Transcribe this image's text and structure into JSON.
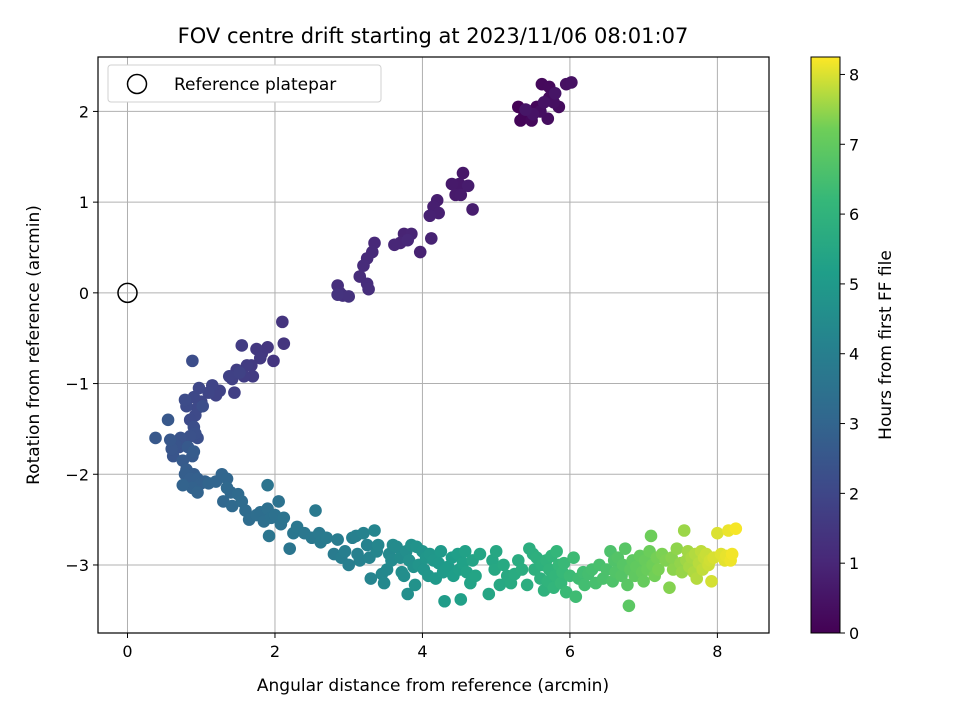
{
  "chart_data": {
    "type": "scatter",
    "title": "FOV centre drift starting at 2023/11/06 08:01:07",
    "xlabel": "Angular distance from reference (arcmin)",
    "ylabel": "Rotation from reference (arcmin)",
    "colorbar_label": "Hours from first FF file",
    "xlim": [
      -0.4,
      8.7
    ],
    "ylim": [
      -3.75,
      2.6
    ],
    "xticks": [
      0,
      2,
      4,
      6,
      8
    ],
    "yticks": [
      -3,
      -2,
      -1,
      0,
      1,
      2
    ],
    "colorbar_range": [
      0,
      8.25
    ],
    "colorbar_ticks": [
      0,
      1,
      2,
      3,
      4,
      5,
      6,
      7,
      8
    ],
    "colormap": "viridis",
    "grid": true,
    "legend": {
      "position": "top-left",
      "entries": [
        "Reference platepar"
      ]
    },
    "reference_point": {
      "x": 0,
      "y": 0
    },
    "series": [
      {
        "points": [
          [
            5.3,
            2.05
          ],
          [
            5.38,
            1.95
          ],
          [
            5.33,
            1.9
          ],
          [
            5.45,
            2.0
          ],
          [
            5.55,
            2.05
          ],
          [
            5.48,
            1.9
          ],
          [
            5.62,
            2.3
          ],
          [
            5.72,
            2.27
          ],
          [
            5.72,
            2.15
          ],
          [
            5.85,
            2.05
          ],
          [
            5.7,
            1.92
          ],
          [
            5.6,
            2.0
          ],
          [
            5.78,
            2.1
          ],
          [
            5.95,
            2.3
          ],
          [
            6.02,
            2.32
          ],
          [
            5.65,
            2.1
          ],
          [
            5.5,
            1.97
          ],
          [
            5.8,
            2.2
          ],
          [
            5.4,
            2.02
          ],
          [
            4.55,
            1.32
          ],
          [
            4.5,
            1.2
          ],
          [
            4.4,
            1.2
          ],
          [
            4.45,
            1.08
          ],
          [
            4.52,
            1.08
          ],
          [
            4.62,
            1.18
          ],
          [
            4.68,
            0.92
          ],
          [
            4.2,
            1.02
          ],
          [
            4.15,
            0.95
          ],
          [
            4.22,
            0.88
          ],
          [
            4.1,
            0.85
          ],
          [
            3.97,
            0.45
          ],
          [
            4.12,
            0.6
          ],
          [
            3.75,
            0.65
          ],
          [
            3.85,
            0.65
          ],
          [
            3.7,
            0.55
          ],
          [
            3.62,
            0.53
          ],
          [
            3.8,
            0.58
          ],
          [
            3.35,
            0.55
          ],
          [
            3.32,
            0.45
          ],
          [
            3.25,
            0.38
          ],
          [
            3.2,
            0.3
          ],
          [
            3.15,
            0.18
          ],
          [
            3.25,
            0.1
          ],
          [
            3.27,
            0.04
          ],
          [
            2.85,
            0.08
          ],
          [
            2.88,
            0.0
          ],
          [
            2.92,
            -0.03
          ],
          [
            3.0,
            -0.04
          ],
          [
            2.85,
            -0.02
          ],
          [
            2.1,
            -0.32
          ],
          [
            2.12,
            -0.56
          ],
          [
            1.98,
            -0.75
          ],
          [
            1.9,
            -0.6
          ],
          [
            1.82,
            -0.67
          ],
          [
            1.75,
            -0.62
          ],
          [
            1.8,
            -0.72
          ],
          [
            1.68,
            -0.8
          ],
          [
            1.7,
            -0.92
          ],
          [
            1.62,
            -0.8
          ],
          [
            1.55,
            -0.58
          ],
          [
            1.58,
            -0.92
          ],
          [
            1.48,
            -0.85
          ],
          [
            1.45,
            -1.1
          ],
          [
            1.42,
            -0.95
          ],
          [
            1.38,
            -0.92
          ],
          [
            1.52,
            -0.88
          ],
          [
            1.25,
            -1.08
          ],
          [
            1.2,
            -1.13
          ],
          [
            1.15,
            -1.02
          ],
          [
            1.1,
            -1.1
          ],
          [
            1.0,
            -1.2
          ],
          [
            0.97,
            -1.05
          ],
          [
            0.9,
            -1.15
          ],
          [
            0.95,
            -1.27
          ],
          [
            0.92,
            -1.35
          ],
          [
            0.85,
            -1.4
          ],
          [
            0.8,
            -1.25
          ],
          [
            0.78,
            -1.18
          ],
          [
            0.88,
            -0.75
          ],
          [
            1.02,
            -1.25
          ],
          [
            0.9,
            -1.48
          ],
          [
            0.95,
            -1.6
          ],
          [
            0.92,
            -1.55
          ],
          [
            0.85,
            -1.58
          ],
          [
            0.78,
            -1.65
          ],
          [
            0.72,
            -1.6
          ],
          [
            0.7,
            -1.7
          ],
          [
            0.65,
            -1.68
          ],
          [
            0.62,
            -1.8
          ],
          [
            0.6,
            -1.72
          ],
          [
            0.58,
            -1.62
          ],
          [
            0.55,
            -1.4
          ],
          [
            0.38,
            -1.6
          ],
          [
            0.82,
            -1.7
          ],
          [
            0.88,
            -1.8
          ],
          [
            0.75,
            -1.85
          ],
          [
            0.9,
            -1.75
          ],
          [
            0.8,
            -1.95
          ],
          [
            0.9,
            -2.0
          ],
          [
            0.78,
            -2.0
          ],
          [
            0.85,
            -2.05
          ],
          [
            0.95,
            -2.05
          ],
          [
            1.0,
            -2.1
          ],
          [
            1.05,
            -2.08
          ],
          [
            0.88,
            -2.15
          ],
          [
            0.75,
            -2.12
          ],
          [
            0.95,
            -2.2
          ],
          [
            1.1,
            -2.1
          ],
          [
            1.2,
            -2.08
          ],
          [
            1.28,
            -2.0
          ],
          [
            1.35,
            -2.05
          ],
          [
            1.3,
            -2.3
          ],
          [
            1.4,
            -2.2
          ],
          [
            1.35,
            -2.15
          ],
          [
            1.42,
            -2.35
          ],
          [
            1.5,
            -2.22
          ],
          [
            1.55,
            -2.3
          ],
          [
            1.6,
            -2.4
          ],
          [
            1.65,
            -2.5
          ],
          [
            1.75,
            -2.45
          ],
          [
            1.8,
            -2.42
          ],
          [
            1.85,
            -2.52
          ],
          [
            1.9,
            -2.38
          ],
          [
            1.95,
            -2.48
          ],
          [
            2.0,
            -2.45
          ],
          [
            2.05,
            -2.3
          ],
          [
            2.08,
            -2.55
          ],
          [
            2.12,
            -2.48
          ],
          [
            1.9,
            -2.12
          ],
          [
            1.92,
            -2.68
          ],
          [
            2.2,
            -2.82
          ],
          [
            2.25,
            -2.65
          ],
          [
            2.3,
            -2.58
          ],
          [
            2.4,
            -2.65
          ],
          [
            2.5,
            -2.7
          ],
          [
            2.55,
            -2.4
          ],
          [
            2.6,
            -2.65
          ],
          [
            2.62,
            -2.75
          ],
          [
            2.7,
            -2.7
          ],
          [
            2.8,
            -2.88
          ],
          [
            2.85,
            -2.72
          ],
          [
            2.9,
            -2.92
          ],
          [
            2.95,
            -2.85
          ],
          [
            3.0,
            -3.0
          ],
          [
            3.05,
            -2.7
          ],
          [
            3.1,
            -2.68
          ],
          [
            3.12,
            -2.88
          ],
          [
            3.15,
            -2.95
          ],
          [
            3.2,
            -2.65
          ],
          [
            3.25,
            -2.78
          ],
          [
            3.28,
            -2.92
          ],
          [
            3.3,
            -3.15
          ],
          [
            3.35,
            -2.62
          ],
          [
            3.38,
            -2.85
          ],
          [
            3.4,
            -2.78
          ],
          [
            3.45,
            -3.1
          ],
          [
            3.48,
            -3.2
          ],
          [
            3.52,
            -3.05
          ],
          [
            3.55,
            -2.88
          ],
          [
            3.58,
            -2.95
          ],
          [
            3.6,
            -2.78
          ],
          [
            3.65,
            -2.8
          ],
          [
            3.7,
            -2.92
          ],
          [
            3.72,
            -3.08
          ],
          [
            3.75,
            -3.12
          ],
          [
            3.78,
            -2.85
          ],
          [
            3.8,
            -3.32
          ],
          [
            3.82,
            -2.95
          ],
          [
            3.85,
            -2.78
          ],
          [
            3.88,
            -3.02
          ],
          [
            3.9,
            -3.22
          ],
          [
            3.92,
            -2.8
          ],
          [
            3.95,
            -3.0
          ],
          [
            4.0,
            -2.85
          ],
          [
            4.02,
            -3.05
          ],
          [
            4.05,
            -2.92
          ],
          [
            4.08,
            -3.12
          ],
          [
            4.1,
            -2.88
          ],
          [
            4.15,
            -2.95
          ],
          [
            4.18,
            -3.15
          ],
          [
            4.22,
            -2.98
          ],
          [
            4.25,
            -2.85
          ],
          [
            4.28,
            -3.08
          ],
          [
            4.3,
            -3.4
          ],
          [
            4.35,
            -3.02
          ],
          [
            4.4,
            -2.92
          ],
          [
            4.42,
            -3.12
          ],
          [
            4.48,
            -2.88
          ],
          [
            4.5,
            -3.05
          ],
          [
            4.52,
            -3.38
          ],
          [
            4.55,
            -2.98
          ],
          [
            4.58,
            -2.85
          ],
          [
            4.6,
            -3.08
          ],
          [
            4.65,
            -3.2
          ],
          [
            4.68,
            -2.95
          ],
          [
            4.72,
            -3.12
          ],
          [
            4.78,
            -2.88
          ],
          [
            4.9,
            -3.32
          ],
          [
            4.95,
            -2.95
          ],
          [
            4.98,
            -3.05
          ],
          [
            5.0,
            -2.85
          ],
          [
            5.05,
            -3.22
          ],
          [
            5.1,
            -3.0
          ],
          [
            5.15,
            -3.12
          ],
          [
            5.2,
            -3.2
          ],
          [
            5.25,
            -3.1
          ],
          [
            5.3,
            -2.95
          ],
          [
            5.35,
            -3.05
          ],
          [
            5.42,
            -3.22
          ],
          [
            5.45,
            -2.82
          ],
          [
            5.5,
            -2.88
          ],
          [
            5.52,
            -3.05
          ],
          [
            5.55,
            -2.92
          ],
          [
            5.6,
            -3.15
          ],
          [
            5.62,
            -3.0
          ],
          [
            5.65,
            -3.28
          ],
          [
            5.68,
            -2.95
          ],
          [
            5.7,
            -3.18
          ],
          [
            5.72,
            -3.05
          ],
          [
            5.75,
            -2.9
          ],
          [
            5.78,
            -3.25
          ],
          [
            5.8,
            -3.12
          ],
          [
            5.82,
            -2.85
          ],
          [
            5.85,
            -3.0
          ],
          [
            5.88,
            -3.2
          ],
          [
            5.9,
            -3.08
          ],
          [
            5.92,
            -2.98
          ],
          [
            5.95,
            -3.3
          ],
          [
            6.0,
            -3.12
          ],
          [
            6.05,
            -2.92
          ],
          [
            6.08,
            -3.35
          ],
          [
            6.12,
            -3.15
          ],
          [
            6.18,
            -3.08
          ],
          [
            6.2,
            -3.22
          ],
          [
            6.25,
            -3.1
          ],
          [
            6.3,
            -3.05
          ],
          [
            6.35,
            -3.2
          ],
          [
            6.4,
            -3.0
          ],
          [
            6.45,
            -3.15
          ],
          [
            6.5,
            -3.05
          ],
          [
            6.55,
            -2.85
          ],
          [
            6.58,
            -3.18
          ],
          [
            6.6,
            -2.95
          ],
          [
            6.62,
            -3.08
          ],
          [
            6.65,
            -2.92
          ],
          [
            6.7,
            -3.12
          ],
          [
            6.72,
            -3.0
          ],
          [
            6.75,
            -2.82
          ],
          [
            6.78,
            -3.22
          ],
          [
            6.8,
            -3.45
          ],
          [
            6.82,
            -3.05
          ],
          [
            6.85,
            -2.95
          ],
          [
            6.88,
            -3.12
          ],
          [
            6.9,
            -3.02
          ],
          [
            6.95,
            -2.9
          ],
          [
            6.98,
            -3.08
          ],
          [
            7.0,
            -3.18
          ],
          [
            7.02,
            -2.95
          ],
          [
            7.05,
            -3.05
          ],
          [
            7.08,
            -2.85
          ],
          [
            7.1,
            -2.68
          ],
          [
            7.12,
            -3.0
          ],
          [
            7.15,
            -3.12
          ],
          [
            7.18,
            -2.92
          ],
          [
            7.2,
            -3.05
          ],
          [
            7.25,
            -2.88
          ],
          [
            7.3,
            -2.95
          ],
          [
            7.35,
            -3.25
          ],
          [
            7.38,
            -2.92
          ],
          [
            7.4,
            -3.05
          ],
          [
            7.45,
            -2.82
          ],
          [
            7.5,
            -2.98
          ],
          [
            7.52,
            -3.08
          ],
          [
            7.55,
            -2.62
          ],
          [
            7.58,
            -2.95
          ],
          [
            7.6,
            -2.85
          ],
          [
            7.62,
            -3.02
          ],
          [
            7.65,
            -2.92
          ],
          [
            7.68,
            -3.08
          ],
          [
            7.7,
            -2.88
          ],
          [
            7.72,
            -3.15
          ],
          [
            7.75,
            -2.98
          ],
          [
            7.78,
            -2.85
          ],
          [
            7.8,
            -3.05
          ],
          [
            7.82,
            -2.92
          ],
          [
            7.85,
            -2.88
          ],
          [
            7.88,
            -3.0
          ],
          [
            7.9,
            -2.95
          ],
          [
            7.92,
            -3.18
          ],
          [
            7.95,
            -2.92
          ],
          [
            8.0,
            -2.65
          ],
          [
            8.05,
            -2.88
          ],
          [
            8.1,
            -2.95
          ],
          [
            8.12,
            -2.9
          ],
          [
            8.15,
            -2.62
          ],
          [
            8.18,
            -2.95
          ],
          [
            8.2,
            -2.88
          ],
          [
            8.25,
            -2.6
          ]
        ]
      }
    ]
  }
}
